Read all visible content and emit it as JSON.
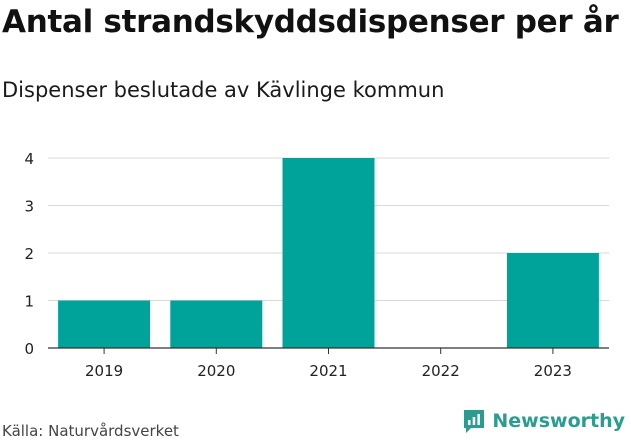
{
  "chart_data": {
    "type": "bar",
    "title": "Antal strandskyddsdispenser per år",
    "subtitle": "Dispenser beslutade av Kävlinge kommun",
    "categories": [
      "2019",
      "2020",
      "2021",
      "2022",
      "2023"
    ],
    "values": [
      1,
      1,
      4,
      0,
      2
    ],
    "yticks": [
      "0",
      "1",
      "2",
      "3",
      "4"
    ],
    "ylim": [
      0,
      4
    ],
    "xlabel": "",
    "ylabel": "",
    "grid": true,
    "bar_color": "#00a39a"
  },
  "footer": {
    "source": "Källa: Naturvårdsverket",
    "brand": "Newsworthy",
    "brand_icon": "newsworthy-logo-icon"
  },
  "colors": {
    "grid": "#d9d9d9",
    "axis": "#333333",
    "brand": "#2a9d8f"
  }
}
